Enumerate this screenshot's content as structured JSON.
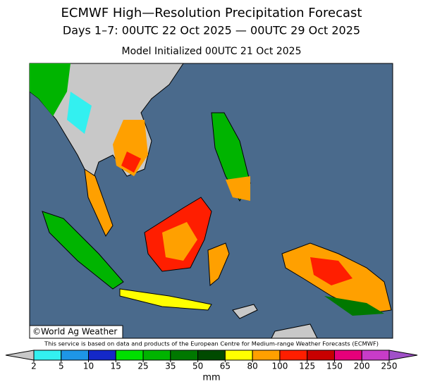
{
  "header": {
    "title": "ECMWF High—Resolution Precipitation Forecast",
    "subtitle": "Days 1–7: 00UTC 22 Oct 2025 — 00UTC 29 Oct 2025",
    "initialized": "Model Initialized 00UTC 21 Oct 2025"
  },
  "map": {
    "credit": "©World Ag Weather",
    "ocean_color": "#4a6a8c"
  },
  "disclaimer": "This service is based on data and products of the European Centre for Medium-range Weather Forecasts (ECMWF)",
  "colorbar": {
    "unit": "mm",
    "ticks": [
      2,
      5,
      10,
      15,
      25,
      35,
      50,
      65,
      80,
      100,
      125,
      150,
      200,
      250
    ],
    "colors": [
      "#33f0f0",
      "#1e96e6",
      "#1428c8",
      "#00e000",
      "#00b400",
      "#007800",
      "#004a00",
      "#ffff00",
      "#ffa000",
      "#ff1e00",
      "#c80000",
      "#e6007a",
      "#c83cc8"
    ],
    "under_color": "#c8c8c8",
    "over_color": "#a050c8"
  }
}
